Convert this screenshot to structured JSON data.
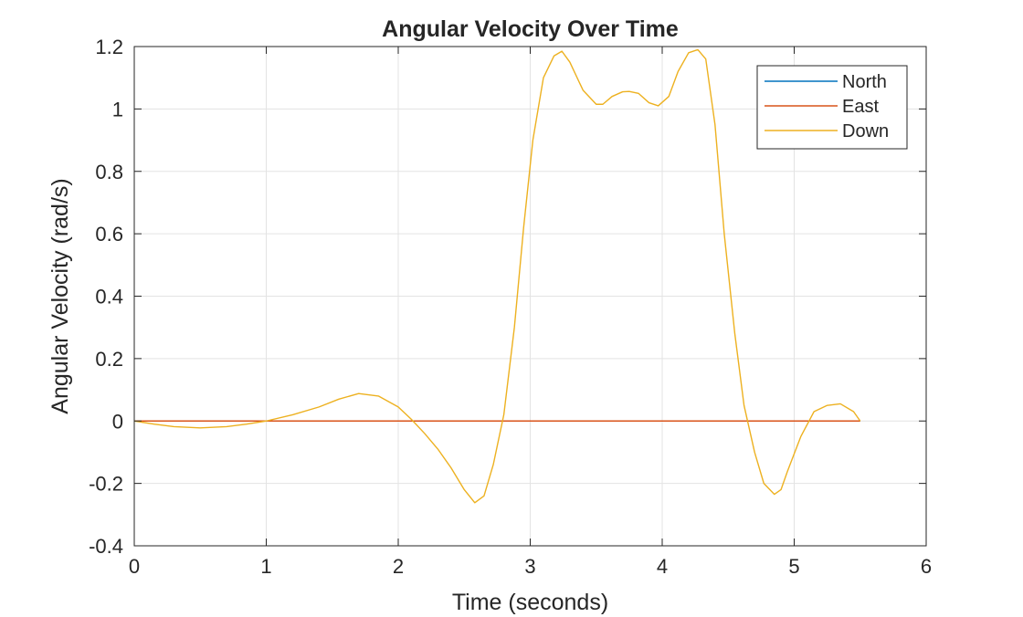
{
  "chart_data": {
    "type": "line",
    "title": "Angular Velocity Over Time",
    "xlabel": "Time (seconds)",
    "ylabel": "Angular Velocity (rad/s)",
    "xlim": [
      0,
      6
    ],
    "ylim": [
      -0.4,
      1.2
    ],
    "xticks": [
      0,
      1,
      2,
      3,
      4,
      5,
      6
    ],
    "yticks": [
      -0.4,
      -0.2,
      0,
      0.2,
      0.4,
      0.6,
      0.8,
      1,
      1.2
    ],
    "xtick_labels": [
      "0",
      "1",
      "2",
      "3",
      "4",
      "5",
      "6"
    ],
    "ytick_labels": [
      "-0.4",
      "-0.2",
      "0",
      "0.2",
      "0.4",
      "0.6",
      "0.8",
      "1",
      "1.2"
    ],
    "grid": true,
    "legend_position": "top-right",
    "series": [
      {
        "name": "North",
        "color": "#0072BD",
        "x": [
          0,
          5.5
        ],
        "y": [
          0,
          0
        ]
      },
      {
        "name": "East",
        "color": "#D95319",
        "x": [
          0,
          5.5
        ],
        "y": [
          0,
          0
        ]
      },
      {
        "name": "Down",
        "color": "#EDB120",
        "x": [
          0,
          0.15,
          0.3,
          0.5,
          0.7,
          0.85,
          1.0,
          1.2,
          1.4,
          1.55,
          1.7,
          1.85,
          2.0,
          2.1,
          2.2,
          2.3,
          2.4,
          2.5,
          2.58,
          2.65,
          2.72,
          2.8,
          2.88,
          2.95,
          3.02,
          3.1,
          3.18,
          3.24,
          3.3,
          3.4,
          3.5,
          3.55,
          3.62,
          3.7,
          3.75,
          3.82,
          3.9,
          3.97,
          4.05,
          4.12,
          4.2,
          4.27,
          4.33,
          4.4,
          4.47,
          4.55,
          4.62,
          4.7,
          4.77,
          4.85,
          4.9,
          4.95,
          5.05,
          5.15,
          5.25,
          5.35,
          5.45,
          5.5
        ],
        "y": [
          0,
          -0.01,
          -0.018,
          -0.022,
          -0.018,
          -0.01,
          0,
          0.02,
          0.045,
          0.07,
          0.088,
          0.08,
          0.045,
          0.005,
          -0.04,
          -0.09,
          -0.15,
          -0.22,
          -0.262,
          -0.24,
          -0.14,
          0.02,
          0.3,
          0.62,
          0.9,
          1.1,
          1.17,
          1.185,
          1.15,
          1.06,
          1.015,
          1.015,
          1.04,
          1.055,
          1.056,
          1.05,
          1.02,
          1.01,
          1.04,
          1.12,
          1.18,
          1.19,
          1.16,
          0.95,
          0.6,
          0.28,
          0.05,
          -0.1,
          -0.2,
          -0.235,
          -0.22,
          -0.16,
          -0.05,
          0.03,
          0.05,
          0.055,
          0.03,
          0
        ]
      }
    ]
  }
}
